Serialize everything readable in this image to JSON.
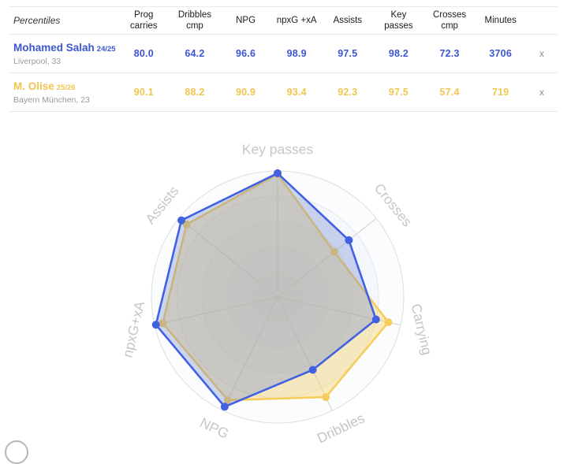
{
  "table": {
    "header": {
      "label": "Percentiles",
      "columns": [
        "Prog carries",
        "Dribbles cmp",
        "NPG",
        "npxG +xA",
        "Assists",
        "Key passes",
        "Crosses cmp",
        "Minutes"
      ]
    },
    "players": [
      {
        "name": "Mohamed Salah",
        "season": "24/25",
        "meta": "Liverpool, 33",
        "color": "#3d56d0",
        "values": [
          "80.0",
          "64.2",
          "96.6",
          "98.9",
          "97.5",
          "98.2",
          "72.3",
          "3706"
        ],
        "remove_label": "x"
      },
      {
        "name": "M. Olise",
        "season": "25/26",
        "meta": "Bayern München, 23",
        "color": "#f0c64f",
        "values": [
          "90.1",
          "88.2",
          "90.9",
          "93.4",
          "92.3",
          "97.5",
          "57.4",
          "719"
        ],
        "remove_label": "x"
      }
    ]
  },
  "chart_data": {
    "type": "radar",
    "title": "Player percentile comparison radar",
    "scale": {
      "min": 0,
      "max": 100,
      "rings": 5
    },
    "grid": "circular",
    "axes": [
      {
        "label": "Key passes",
        "rotation": 0
      },
      {
        "label": "Crosses",
        "rotation": 51
      },
      {
        "label": "Carrying",
        "rotation": 77
      },
      {
        "label": "Dribbles",
        "rotation": -26
      },
      {
        "label": "NPG",
        "rotation": 26
      },
      {
        "label": "npxG+xA",
        "rotation": -77
      },
      {
        "label": "Assists",
        "rotation": -51
      }
    ],
    "series": [
      {
        "name": "M. Olise 25/26",
        "color": "#f6cd5a",
        "fill": "rgba(246,205,90,0.38)",
        "values": [
          97.5,
          57.4,
          90.1,
          88.2,
          90.9,
          93.4,
          92.3
        ]
      },
      {
        "name": "Mohamed Salah 24/25",
        "color": "#4161e2",
        "fill": "rgba(110,135,205,0.33)",
        "values": [
          98.2,
          72.3,
          80.0,
          64.2,
          96.6,
          98.9,
          97.5
        ]
      }
    ],
    "axis_label_color": "#c6c6c6"
  }
}
